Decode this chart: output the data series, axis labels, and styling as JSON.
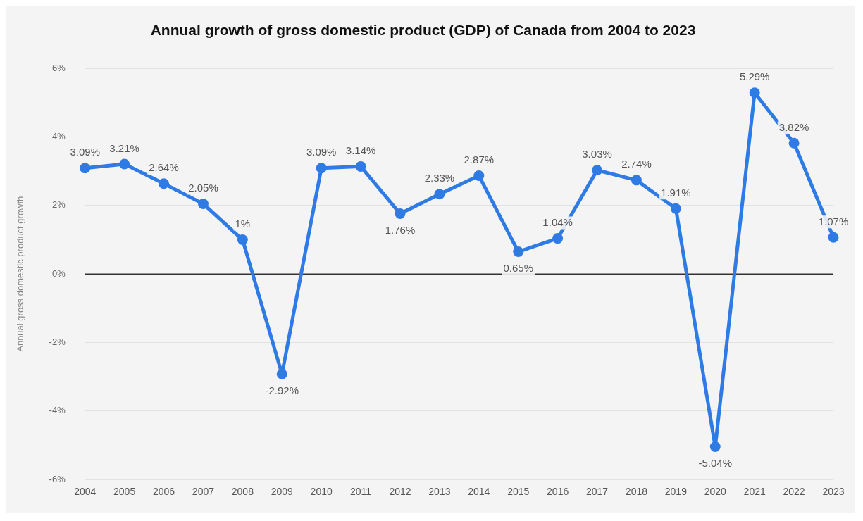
{
  "chart_data": {
    "type": "line",
    "title": "Annual growth of gross domestic product (GDP) of Canada from 2004 to 2023",
    "ylabel": "Annual gross domestic product growth",
    "categories": [
      "2004",
      "2005",
      "2006",
      "2007",
      "2008",
      "2009",
      "2010",
      "2011",
      "2012",
      "2013",
      "2014",
      "2015",
      "2016",
      "2017",
      "2018",
      "2019",
      "2020",
      "2021",
      "2022",
      "2023"
    ],
    "series": [
      {
        "color": "#2f7be5",
        "values": [
          3.09,
          3.21,
          2.64,
          2.05,
          1,
          -2.92,
          3.09,
          3.14,
          1.76,
          2.33,
          2.87,
          0.65,
          1.04,
          3.03,
          2.74,
          1.91,
          -5.04,
          5.29,
          3.82,
          1.07
        ],
        "value_labels": [
          "3.09%",
          "3.21%",
          "2.64%",
          "2.05%",
          "1%",
          "-2.92%",
          "3.09%",
          "3.14%",
          "1.76%",
          "2.33%",
          "2.87%",
          "0.65%",
          "1.04%",
          "3.03%",
          "2.74%",
          "1.91%",
          "-5.04%",
          "5.29%",
          "3.82%",
          "1.07%"
        ]
      }
    ],
    "ylim": [
      -6,
      6
    ],
    "yticks": [
      {
        "value": -6,
        "label": "-6%"
      },
      {
        "value": -4,
        "label": "-4%"
      },
      {
        "value": -2,
        "label": "-2%"
      },
      {
        "value": 0,
        "label": "0%"
      },
      {
        "value": 2,
        "label": "2%"
      },
      {
        "value": 4,
        "label": "4%"
      },
      {
        "value": 6,
        "label": "6%"
      }
    ],
    "ref_lines": [
      {
        "axis": "y",
        "value": 0,
        "color": "#333333"
      }
    ],
    "grid": "y",
    "legend": false,
    "marker": "circle",
    "line_style": "solid"
  }
}
